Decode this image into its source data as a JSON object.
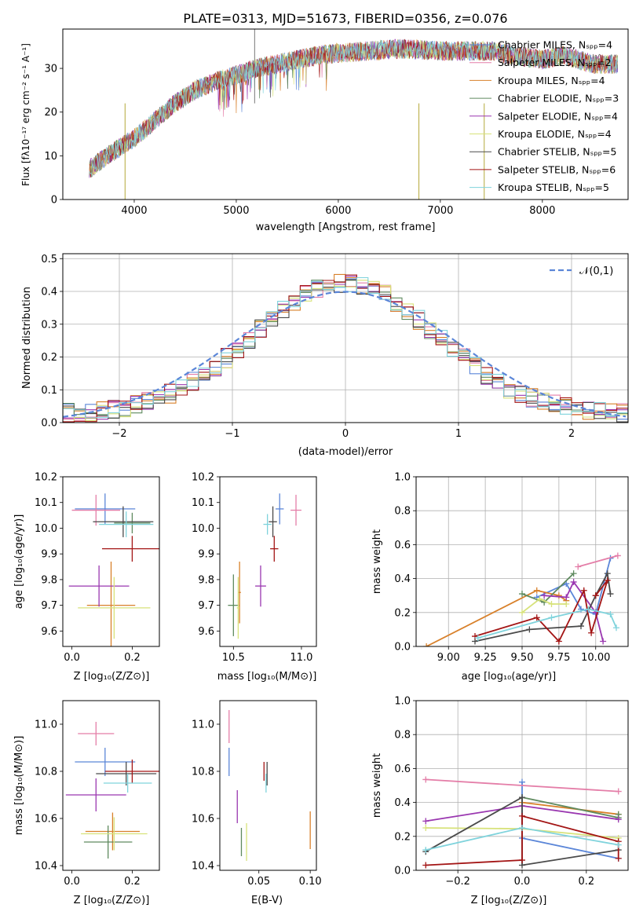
{
  "figure_title": "PLATE=0313, MJD=51673, FIBERID=0356, z=0.076",
  "series_colors": [
    "#5b86d8",
    "#e47ea8",
    "#d8802a",
    "#5f8a5f",
    "#9a37b0",
    "#d7e27a",
    "#4a4a4a",
    "#a31515",
    "#7fd3dc"
  ],
  "chart_data": [
    {
      "id": "spectrum",
      "type": "line",
      "title": "PLATE=0313, MJD=51673, FIBERID=0356, z=0.076",
      "xlabel": "wavelength [Angstrom, rest frame]",
      "ylabel": "Flux [fλ10⁻¹⁷ erg cm⁻² s⁻¹ A⁻¹]",
      "xlim": [
        3300,
        8840
      ],
      "ylim": [
        0,
        39
      ],
      "xticks": [
        4000,
        5000,
        6000,
        7000,
        8000
      ],
      "yticks": [
        0,
        10,
        20,
        30
      ],
      "grid": false,
      "legend_position": "upper-right",
      "legend": [
        "Chabrier MILES, Nₛₚₚ=4",
        "Salpeter MILES, Nₛₚₚ=2",
        "Kroupa MILES, Nₛₚₚ=4",
        "Chabrier ELODIE, Nₛₚₚ=3",
        "Salpeter ELODIE, Nₛₚₚ=4",
        "Kroupa ELODIE, Nₛₚₚ=4",
        "Chabrier STELIB, Nₛₚₚ=5",
        "Salpeter STELIB, Nₛₚₚ=6",
        "Kroupa STELIB, Nₛₚₚ=5"
      ],
      "continuum": {
        "x": [
          3560,
          3800,
          4000,
          4200,
          4400,
          4600,
          4800,
          5000,
          5200,
          5400,
          5600,
          5800,
          6000,
          6300,
          6600,
          7000,
          7300,
          7500,
          7700,
          8000,
          8200,
          8500,
          8740
        ],
        "y": [
          7,
          11,
          14,
          18,
          22,
          25,
          27,
          28.5,
          30,
          31,
          32,
          33,
          33.5,
          34,
          34.5,
          34,
          34,
          34,
          33,
          32,
          33,
          31,
          31
        ]
      },
      "spikes": [
        {
          "x": 3910,
          "y": 0
        },
        {
          "x": 5180,
          "y": 39
        },
        {
          "x": 6790,
          "y": 0
        },
        {
          "x": 7430,
          "y": 0
        }
      ]
    },
    {
      "id": "residuals",
      "type": "histogram",
      "xlabel": "(data-model)/error",
      "ylabel": "Normed distribution",
      "xlim": [
        -2.5,
        2.5
      ],
      "ylim": [
        0,
        0.515
      ],
      "xticks": [
        -2,
        -1,
        0,
        1,
        2
      ],
      "yticks": [
        0.0,
        0.1,
        0.2,
        0.3,
        0.4,
        0.5
      ],
      "grid": true,
      "legend_position": "upper-right",
      "legend": [
        "𝒩(0,1)"
      ],
      "normal_curve": {
        "mean": 0,
        "sigma": 1
      }
    },
    {
      "id": "age-vs-z",
      "type": "errorbar",
      "xlabel": "Z [log₁₀(Z/Z⊙)]",
      "ylabel": "age  [log₁₀(age/yr)]",
      "xlim": [
        -0.03,
        0.29
      ],
      "ylim": [
        9.54,
        10.2
      ],
      "xticks": [
        0.0,
        0.2
      ],
      "yticks": [
        9.6,
        9.7,
        9.8,
        9.9,
        10.0,
        10.1,
        10.2
      ],
      "grid": false,
      "points": [
        {
          "x": 0.11,
          "y": 10.075,
          "xerr": 0.1,
          "yerr": 0.06
        },
        {
          "x": 0.08,
          "y": 10.07,
          "xerr": 0.08,
          "yerr": 0.06
        },
        {
          "x": 0.13,
          "y": 9.7,
          "xerr": 0.08,
          "yerr": 0.17
        },
        {
          "x": 0.2,
          "y": 10.02,
          "xerr": 0.06,
          "yerr": 0.04
        },
        {
          "x": 0.09,
          "y": 9.775,
          "xerr": 0.1,
          "yerr": 0.08
        },
        {
          "x": 0.14,
          "y": 9.69,
          "xerr": 0.12,
          "yerr": 0.12
        },
        {
          "x": 0.17,
          "y": 10.025,
          "xerr": 0.1,
          "yerr": 0.06
        },
        {
          "x": 0.2,
          "y": 9.92,
          "xerr": 0.1,
          "yerr": 0.05
        },
        {
          "x": 0.18,
          "y": 10.015,
          "xerr": 0.09,
          "yerr": 0.05
        }
      ]
    },
    {
      "id": "age-vs-mass",
      "type": "errorbar",
      "xlabel": "mass [log₁₀(M/M⊙)]",
      "ylabel": "",
      "xlim": [
        10.4,
        11.11
      ],
      "ylim": [
        9.54,
        10.2
      ],
      "xticks": [
        10.5,
        11.0
      ],
      "yticks": [
        9.6,
        9.7,
        9.8,
        9.9,
        10.0,
        10.1,
        10.2
      ],
      "grid": false,
      "points": [
        {
          "x": 10.84,
          "y": 10.075,
          "xerr": 0.03,
          "yerr": 0.06
        },
        {
          "x": 10.96,
          "y": 10.07,
          "xerr": 0.04,
          "yerr": 0.06
        },
        {
          "x": 10.545,
          "y": 9.75,
          "xerr": 0.01,
          "yerr": 0.12
        },
        {
          "x": 10.5,
          "y": 9.7,
          "xerr": 0.04,
          "yerr": 0.12
        },
        {
          "x": 10.7,
          "y": 9.775,
          "xerr": 0.04,
          "yerr": 0.08
        },
        {
          "x": 10.535,
          "y": 9.69,
          "xerr": 0.01,
          "yerr": 0.12
        },
        {
          "x": 10.79,
          "y": 10.025,
          "xerr": 0.03,
          "yerr": 0.06
        },
        {
          "x": 10.8,
          "y": 9.92,
          "xerr": 0.03,
          "yerr": 0.05
        },
        {
          "x": 10.75,
          "y": 10.015,
          "xerr": 0.03,
          "yerr": 0.04
        }
      ]
    },
    {
      "id": "mass-weight-vs-age",
      "type": "line",
      "xlabel": "age  [log₁₀(age/yr)]",
      "ylabel": "mass weight",
      "xlim": [
        8.78,
        10.22
      ],
      "ylim": [
        0,
        1
      ],
      "xticks": [
        9.0,
        9.25,
        9.5,
        9.75,
        10.0
      ],
      "yticks": [
        0.0,
        0.2,
        0.4,
        0.6,
        0.8,
        1.0
      ],
      "grid": true,
      "series": [
        {
          "x": [
            9.6,
            9.8,
            9.9,
            10.0,
            10.1
          ],
          "y": [
            0.29,
            0.37,
            0.22,
            0.19,
            0.52
          ]
        },
        {
          "x": [
            9.88,
            10.15
          ],
          "y": [
            0.47,
            0.535
          ]
        },
        {
          "x": [
            8.85,
            9.6,
            9.75,
            9.8
          ],
          "y": [
            0.0,
            0.33,
            0.3,
            0.27
          ]
        },
        {
          "x": [
            9.5,
            9.65,
            9.85
          ],
          "y": [
            0.31,
            0.26,
            0.43
          ]
        },
        {
          "x": [
            9.65,
            9.8,
            9.85,
            10.0,
            10.05
          ],
          "y": [
            0.3,
            0.29,
            0.38,
            0.2,
            0.03
          ]
        },
        {
          "x": [
            9.5,
            9.62,
            9.7,
            9.8
          ],
          "y": [
            0.2,
            0.28,
            0.25,
            0.25
          ]
        },
        {
          "x": [
            9.18,
            9.55,
            9.9,
            10.0,
            10.08,
            10.1
          ],
          "y": [
            0.03,
            0.1,
            0.12,
            0.3,
            0.43,
            0.31
          ]
        },
        {
          "x": [
            9.18,
            9.6,
            9.75,
            9.92,
            9.97,
            10.08,
            10.0
          ],
          "y": [
            0.06,
            0.17,
            0.03,
            0.33,
            0.08,
            0.39,
            0.3
          ]
        },
        {
          "x": [
            9.2,
            9.7,
            9.95,
            10.1,
            10.14
          ],
          "y": [
            0.05,
            0.17,
            0.22,
            0.19,
            0.11
          ]
        }
      ]
    },
    {
      "id": "mass-vs-z",
      "type": "errorbar",
      "xlabel": "Z [log₁₀(Z/Z⊙)]",
      "ylabel": "mass [log₁₀(M/M⊙)]",
      "xlim": [
        -0.03,
        0.29
      ],
      "ylim": [
        10.38,
        11.1
      ],
      "xticks": [
        0.0,
        0.2
      ],
      "yticks": [
        10.4,
        10.6,
        10.8,
        11.0
      ],
      "grid": false,
      "points": [
        {
          "x": 0.11,
          "y": 10.84,
          "xerr": 0.1,
          "yerr": 0.06
        },
        {
          "x": 0.08,
          "y": 10.96,
          "xerr": 0.06,
          "yerr": 0.05
        },
        {
          "x": 0.135,
          "y": 10.545,
          "xerr": 0.09,
          "yerr": 0.08
        },
        {
          "x": 0.12,
          "y": 10.5,
          "xerr": 0.08,
          "yerr": 0.07
        },
        {
          "x": 0.08,
          "y": 10.7,
          "xerr": 0.1,
          "yerr": 0.07
        },
        {
          "x": 0.14,
          "y": 10.535,
          "xerr": 0.11,
          "yerr": 0.07
        },
        {
          "x": 0.18,
          "y": 10.79,
          "xerr": 0.1,
          "yerr": 0.05
        },
        {
          "x": 0.2,
          "y": 10.8,
          "xerr": 0.09,
          "yerr": 0.05
        },
        {
          "x": 0.185,
          "y": 10.75,
          "xerr": 0.08,
          "yerr": 0.04
        }
      ]
    },
    {
      "id": "mass-vs-ebv",
      "type": "errorbar",
      "xlabel": "E(B-V)",
      "ylabel": "",
      "xlim": [
        0.012,
        0.106
      ],
      "ylim": [
        10.38,
        11.1
      ],
      "xticks": [
        0.05,
        0.1
      ],
      "yticks": [
        10.4,
        10.6,
        10.8,
        11.0
      ],
      "grid": false,
      "points": [
        {
          "x": 0.021,
          "y": 10.84,
          "xerr": 0.0,
          "yerr": 0.06
        },
        {
          "x": 0.021,
          "y": 10.99,
          "xerr": 0.0,
          "yerr": 0.07
        },
        {
          "x": 0.1,
          "y": 10.55,
          "xerr": 0.0,
          "yerr": 0.08
        },
        {
          "x": 0.033,
          "y": 10.5,
          "xerr": 0.0,
          "yerr": 0.06
        },
        {
          "x": 0.029,
          "y": 10.65,
          "xerr": 0.0,
          "yerr": 0.07
        },
        {
          "x": 0.038,
          "y": 10.5,
          "xerr": 0.0,
          "yerr": 0.08
        },
        {
          "x": 0.058,
          "y": 10.79,
          "xerr": 0.0,
          "yerr": 0.05
        },
        {
          "x": 0.055,
          "y": 10.8,
          "xerr": 0.0,
          "yerr": 0.04
        },
        {
          "x": 0.057,
          "y": 10.75,
          "xerr": 0.0,
          "yerr": 0.04
        }
      ]
    },
    {
      "id": "mass-weight-vs-z",
      "type": "line",
      "xlabel": "Z [log₁₀(Z/Z⊙)]",
      "ylabel": "mass weight",
      "xlim": [
        -0.33,
        0.33
      ],
      "ylim": [
        0,
        1
      ],
      "xticks": [
        -0.2,
        0.0,
        0.2
      ],
      "yticks": [
        0.0,
        0.2,
        0.4,
        0.6,
        0.8,
        1.0
      ],
      "grid": true,
      "series": [
        {
          "x": [
            0.0,
            0.0,
            0.3
          ],
          "y": [
            0.52,
            0.19,
            0.07
          ]
        },
        {
          "x": [
            -0.3,
            0.3
          ],
          "y": [
            0.535,
            0.465
          ]
        },
        {
          "x": [
            0.0,
            0.3
          ],
          "y": [
            0.4,
            0.33
          ]
        },
        {
          "x": [
            0.0,
            0.3,
            0.3
          ],
          "y": [
            0.43,
            0.31,
            0.33
          ]
        },
        {
          "x": [
            -0.3,
            0.0,
            0.3
          ],
          "y": [
            0.29,
            0.38,
            0.3
          ]
        },
        {
          "x": [
            -0.3,
            0.0,
            0.3
          ],
          "y": [
            0.25,
            0.245,
            0.19
          ]
        },
        {
          "x": [
            -0.3,
            0.0,
            0.0,
            0.3
          ],
          "y": [
            0.11,
            0.43,
            0.03,
            0.12
          ]
        },
        {
          "x": [
            -0.3,
            0.0,
            0.0,
            0.3,
            0.3
          ],
          "y": [
            0.03,
            0.06,
            0.32,
            0.17,
            0.07
          ]
        },
        {
          "x": [
            -0.3,
            0.0,
            0.3
          ],
          "y": [
            0.12,
            0.25,
            0.15
          ]
        }
      ]
    }
  ]
}
